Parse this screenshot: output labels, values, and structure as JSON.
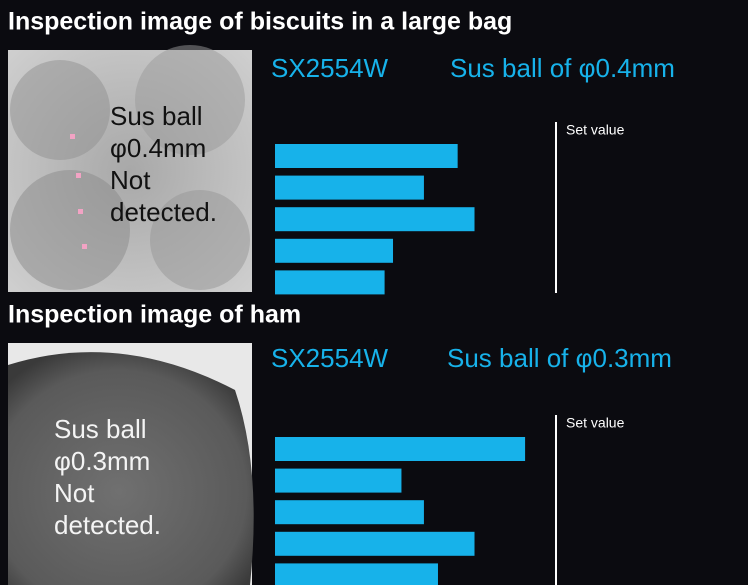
{
  "chart_data": [
    {
      "type": "bar",
      "section_title": "Inspection image of biscuits in a large bag",
      "image_label": [
        "Sus ball",
        "φ0.4mm",
        "Not",
        "detected."
      ],
      "title": "SX2554W",
      "subtitle": "Sus ball of φ0.4mm",
      "values": [
        65,
        53,
        71,
        42,
        39
      ],
      "color": "#17b2ea",
      "xlim": [
        0,
        100
      ],
      "threshold": {
        "value": 100,
        "label": "Set value"
      }
    },
    {
      "type": "bar",
      "section_title": "Inspection image of ham",
      "image_label": [
        "Sus ball",
        "φ0.3mm",
        "Not",
        "detected."
      ],
      "title": "SX2554W",
      "subtitle": "Sus ball of φ0.3mm",
      "values": [
        89,
        45,
        53,
        71,
        58
      ],
      "color": "#17b2ea",
      "xlim": [
        0,
        100
      ],
      "threshold": {
        "value": 100,
        "label": "Set value"
      }
    }
  ]
}
